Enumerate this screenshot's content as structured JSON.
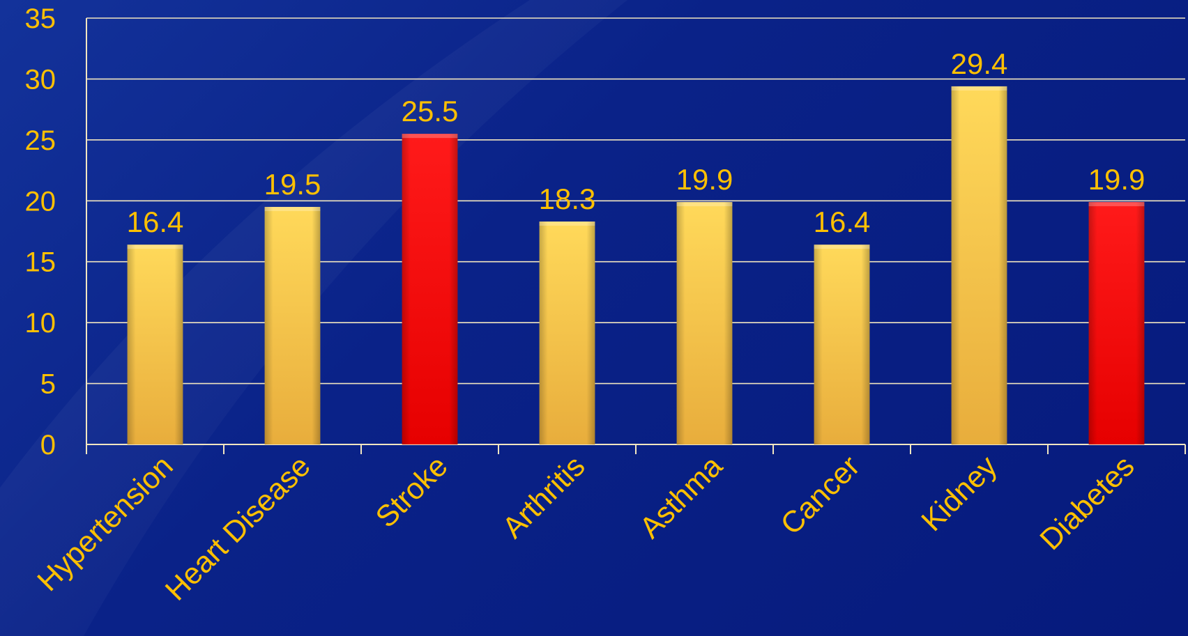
{
  "chart_data": {
    "type": "bar",
    "categories": [
      "Hypertension",
      "Heart Disease",
      "Stroke",
      "Arthritis",
      "Asthma",
      "Cancer",
      "Kidney",
      "Diabetes"
    ],
    "values": [
      16.4,
      19.5,
      25.5,
      18.3,
      19.9,
      16.4,
      29.4,
      19.9
    ],
    "highlight": [
      false,
      false,
      true,
      false,
      false,
      false,
      false,
      true
    ],
    "value_labels": [
      "16.4",
      "19.5",
      "25.5",
      "18.3",
      "19.9",
      "16.4",
      "29.4",
      "19.9"
    ],
    "yticks": [
      "0",
      "5",
      "10",
      "15",
      "20",
      "25",
      "30",
      "35"
    ],
    "ylim": [
      0,
      35
    ],
    "grid": true,
    "title": "",
    "xlabel": "",
    "ylabel": "",
    "colors": {
      "bar": "#ffc83a",
      "highlight": "#ff0000",
      "text": "#ffc000",
      "grid": "#f2e6c0"
    }
  }
}
